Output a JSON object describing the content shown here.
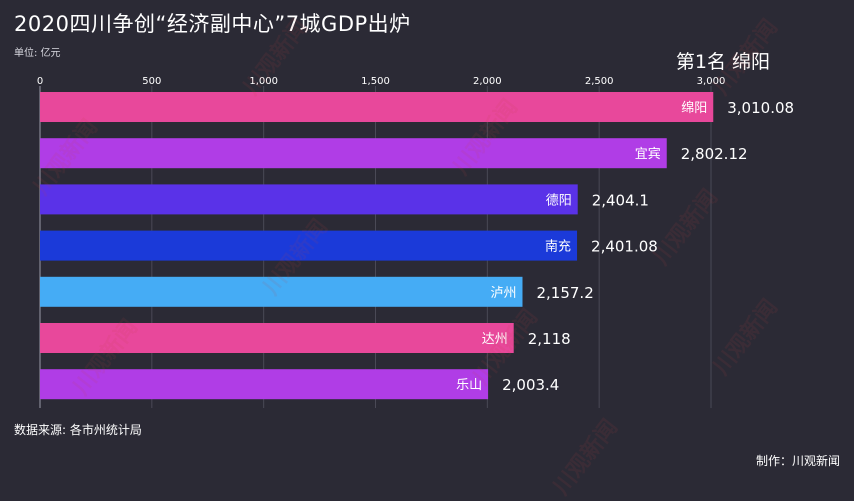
{
  "title": "2020四川争创“经济副中心”7城GDP出炉",
  "unit_label": "单位: 亿元",
  "rank_label": "第1名 绵阳",
  "source_label": "数据来源: 各市州统计局",
  "credit_label": "制作：川观新闻",
  "watermark_text": "川观新闻",
  "colors": {
    "background": "#2b2a35",
    "grid": "#4a4956",
    "pink": "#e8489b",
    "purple": "#b03de6",
    "violet": "#5a32e8",
    "blue": "#1b3ad9",
    "sky": "#45acf5"
  },
  "chart_data": {
    "type": "bar",
    "orientation": "horizontal",
    "categories": [
      "绵阳",
      "宜宾",
      "德阳",
      "南充",
      "泸州",
      "达州",
      "乐山"
    ],
    "values": [
      3010.08,
      2802.12,
      2404.1,
      2401.08,
      2157.2,
      2118,
      2003.4
    ],
    "value_labels": [
      "3,010.08",
      "2,802.12",
      "2,404.1",
      "2,401.08",
      "2,157.2",
      "2,118",
      "2,003.4"
    ],
    "bar_colors": [
      "#e8489b",
      "#b03de6",
      "#5a32e8",
      "#1b3ad9",
      "#45acf5",
      "#e8489b",
      "#b03de6"
    ],
    "xlim": [
      0,
      3000
    ],
    "xticks": [
      0,
      500,
      1000,
      1500,
      2000,
      2500,
      3000
    ],
    "xtick_labels": [
      "0",
      "500",
      "1,000",
      "1,500",
      "2,000",
      "2,500",
      "3,000"
    ],
    "grid": true
  }
}
